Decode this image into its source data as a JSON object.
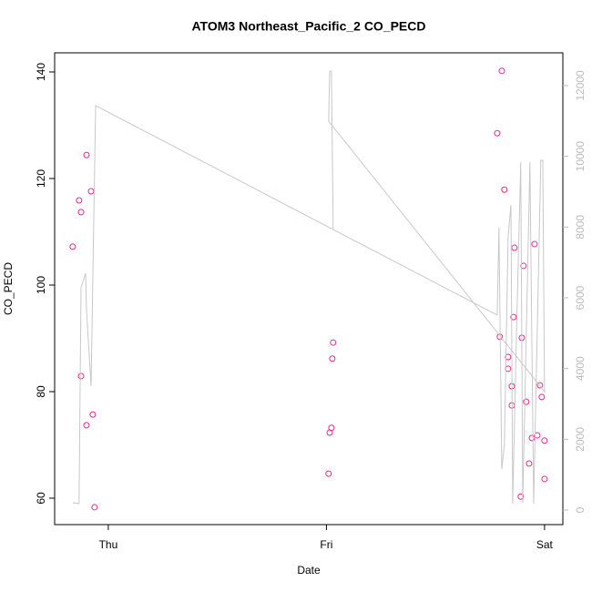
{
  "chart_data": {
    "type": "scatter",
    "title": "ATOM3 Northeast_Pacific_2 CO_PECD",
    "x_label": "Date",
    "y_label": "CO_PECD",
    "xlim": [
      -0.246,
      2.084
    ],
    "xticks": [
      {
        "value": 0,
        "label": "Thu"
      },
      {
        "value": 1,
        "label": "Fri"
      },
      {
        "value": 2,
        "label": "Sat"
      }
    ],
    "ylim": [
      55.04,
      143.59
    ],
    "yticks": [
      60,
      80,
      100,
      120,
      140
    ],
    "y2lim": [
      -412,
      12927
    ],
    "y2ticks": [
      0,
      2000,
      4000,
      6000,
      8000,
      10000,
      12000
    ],
    "y2color": "#bbbbbb",
    "series": [
      {
        "mode": "points",
        "color": "#e8288c",
        "x": [
          -0.163,
          -0.134,
          -0.125,
          -0.1,
          -0.079,
          -0.125,
          -0.1,
          -0.071,
          -0.063,
          1.01,
          1.015,
          1.023,
          1.027,
          1.031,
          1.783,
          1.804,
          1.816,
          1.795,
          1.833,
          1.833,
          1.85,
          1.85,
          1.862,
          1.858,
          1.891,
          1.896,
          1.904,
          1.916,
          1.929,
          1.942,
          1.954,
          1.967,
          1.979,
          1.987,
          2.0,
          2.0
        ],
        "values": [
          107.2,
          115.9,
          113.7,
          124.4,
          117.6,
          82.9,
          73.7,
          75.7,
          58.3,
          64.6,
          72.3,
          73.2,
          86.2,
          89.2,
          128.5,
          140.2,
          117.9,
          90.3,
          86.5,
          84.3,
          81.0,
          77.4,
          107.0,
          94.0,
          60.3,
          90.1,
          103.6,
          78.1,
          66.5,
          71.3,
          107.7,
          71.8,
          81.2,
          79.0,
          70.8,
          63.6
        ]
      },
      {
        "mode": "line",
        "axis": "y2",
        "color": "#c8c8c8",
        "x": [
          -0.163,
          -0.134,
          -0.125,
          -0.104,
          -0.1,
          -0.079,
          -0.058,
          1.783,
          1.791,
          1.804,
          1.816,
          1.833,
          1.846,
          1.854,
          1.871,
          1.891,
          1.9,
          1.933,
          1.95,
          1.983,
          1.992,
          2.0,
          1.01,
          1.015,
          1.023,
          1.031
        ],
        "values": [
          206,
          180,
          6284,
          6696,
          5666,
          3502,
          11434,
          5511,
          7983,
          1159,
          1854,
          7726,
          8627,
          180,
          4893,
          9838,
          206,
          9838,
          180,
          9889,
          9889,
          3348,
          10997,
          12413,
          12413,
          7932
        ]
      }
    ]
  }
}
